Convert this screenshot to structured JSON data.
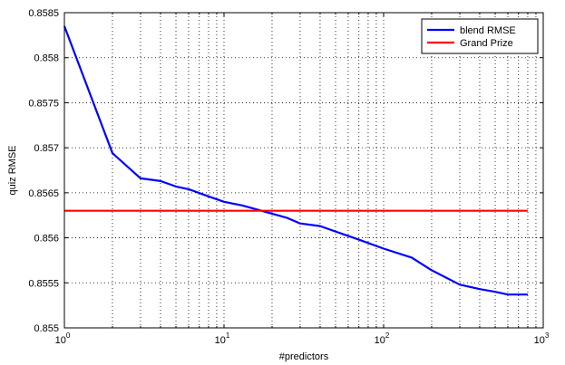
{
  "chart_data": {
    "type": "line",
    "title": "",
    "xlabel": "#predictors",
    "ylabel": "quiz RMSE",
    "x_scale": "log",
    "xlim": [
      1,
      1000
    ],
    "ylim": [
      0.855,
      0.8585
    ],
    "x_ticks": [
      {
        "value": 1,
        "base": "10",
        "exp": "0"
      },
      {
        "value": 10,
        "base": "10",
        "exp": "1"
      },
      {
        "value": 100,
        "base": "10",
        "exp": "2"
      },
      {
        "value": 1000,
        "base": "10",
        "exp": "3"
      }
    ],
    "y_ticks": [
      {
        "value": 0.855,
        "label": "0.855"
      },
      {
        "value": 0.8555,
        "label": "0.8555"
      },
      {
        "value": 0.856,
        "label": "0.856"
      },
      {
        "value": 0.8565,
        "label": "0.8565"
      },
      {
        "value": 0.857,
        "label": "0.857"
      },
      {
        "value": 0.8575,
        "label": "0.8575"
      },
      {
        "value": 0.858,
        "label": "0.858"
      },
      {
        "value": 0.8585,
        "label": "0.8585"
      }
    ],
    "grid": true,
    "legend": "top-right",
    "series": [
      {
        "name": "blend RMSE",
        "color": "#0000ff",
        "x": [
          1,
          2,
          3,
          4,
          5,
          6,
          8,
          10,
          13,
          18,
          25,
          30,
          40,
          50,
          70,
          100,
          150,
          200,
          300,
          400,
          500,
          600,
          800
        ],
        "y": [
          0.85835,
          0.85694,
          0.85666,
          0.85663,
          0.85657,
          0.85654,
          0.85646,
          0.8564,
          0.85636,
          0.85629,
          0.85622,
          0.85616,
          0.85613,
          0.85607,
          0.85598,
          0.85588,
          0.85578,
          0.85564,
          0.85548,
          0.85543,
          0.8554,
          0.85537,
          0.85537
        ]
      },
      {
        "name": "Grand Prize",
        "color": "#ff0000",
        "x": [
          1,
          800
        ],
        "y": [
          0.8563,
          0.8563
        ]
      }
    ]
  }
}
